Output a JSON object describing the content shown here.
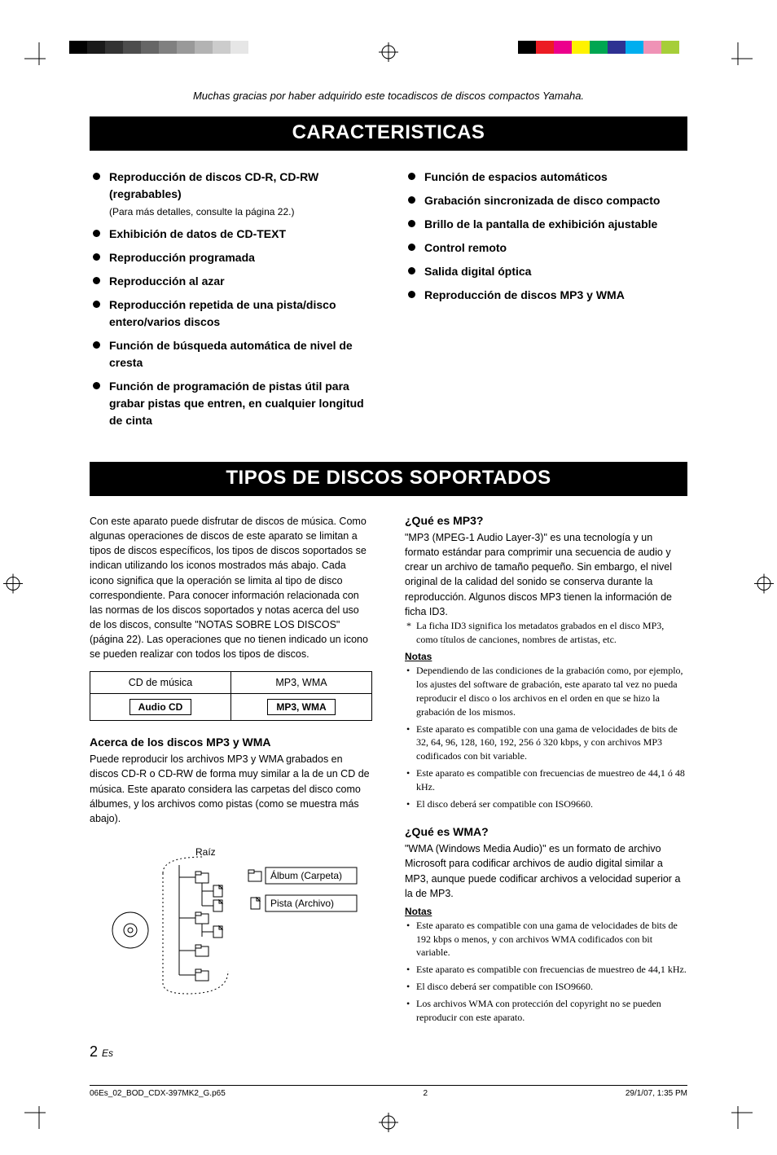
{
  "print_marks": {
    "grayscale_bar": [
      "#000000",
      "#1a1a1a",
      "#333333",
      "#4d4d4d",
      "#666666",
      "#808080",
      "#999999",
      "#b3b3b3",
      "#cccccc",
      "#e6e6e6"
    ],
    "color_bar": [
      "#000000",
      "#ec1c24",
      "#ec008c",
      "#fff200",
      "#00a651",
      "#2e3192",
      "#00aeef",
      "#ef92b6",
      "#a6ce39"
    ]
  },
  "thanks_text": "Muchas gracias por haber adquirido este tocadiscos de discos compactos Yamaha.",
  "section1_title": "CARACTERISTICAS",
  "features_left": [
    {
      "text": "Reproducción de discos CD-R, CD-RW (regrabables)",
      "sub": "(Para más detalles, consulte la página 22.)"
    },
    {
      "text": "Exhibición de datos de CD-TEXT"
    },
    {
      "text": "Reproducción programada"
    },
    {
      "text": "Reproducción al azar"
    },
    {
      "text": "Reproducción repetida de una pista/disco entero/varios discos"
    },
    {
      "text": "Función de búsqueda automática de nivel de cresta"
    },
    {
      "text": "Función de programación de pistas útil para grabar pistas que entren, en cualquier longitud de cinta"
    }
  ],
  "features_right": [
    {
      "text": "Función de espacios automáticos"
    },
    {
      "text": "Grabación sincronizada de disco compacto"
    },
    {
      "text": "Brillo de la pantalla de exhibición ajustable"
    },
    {
      "text": "Control remoto"
    },
    {
      "text": "Salida digital óptica"
    },
    {
      "text": "Reproducción de discos MP3 y WMA"
    }
  ],
  "section2_title": "TIPOS DE DISCOS SOPORTADOS",
  "intro_paragraph": "Con este aparato puede disfrutar de discos de música. Como algunas operaciones de discos de este aparato se limitan a tipos de discos específicos, los tipos de discos soportados se indican utilizando los iconos mostrados más abajo. Cada icono significa que la operación se limita al tipo de disco correspondiente. Para conocer información relacionada con las normas de los discos soportados y notas acerca del uso de los discos, consulte \"NOTAS SOBRE LOS DISCOS\" (página 22). Las operaciones que no tienen indicado un icono se pueden realizar con todos los tipos de discos.",
  "table": {
    "row1": [
      "CD de música",
      "MP3, WMA"
    ],
    "row2_badges": [
      "Audio CD",
      "MP3, WMA"
    ]
  },
  "mp3wma_heading": "Acerca de los discos MP3 y WMA",
  "mp3wma_body": "Puede reproducir los archivos MP3 y WMA grabados en discos CD-R o CD-RW de forma muy similar a la de un CD de música. Este aparato considera las carpetas del disco como álbumes, y los archivos como pistas (como se muestra más abajo).",
  "tree": {
    "root": "Raíz",
    "album": "Álbum (Carpeta)",
    "track": "Pista (Archivo)"
  },
  "mp3_heading": "¿Qué es MP3?",
  "mp3_body": "\"MP3 (MPEG-1 Audio Layer-3)\" es una tecnología y un formato estándar para comprimir una secuencia de audio y crear un archivo de tamaño pequeño. Sin embargo, el nivel original de la calidad del sonido se conserva durante la reproducción. Algunos discos MP3 tienen la información de ficha ID3.",
  "mp3_star": "La ficha ID3 significa los metadatos grabados en el disco MP3, como títulos de canciones, nombres de artistas, etc.",
  "notas_label": "Notas",
  "mp3_notes": [
    "Dependiendo de las condiciones de la grabación como, por ejemplo, los ajustes del software de grabación, este aparato tal vez no pueda reproducir el disco o los archivos en el orden en que se hizo la grabación de los mismos.",
    "Este aparato es compatible con una gama de velocidades de bits de 32, 64, 96, 128, 160, 192, 256 ó 320 kbps, y con archivos MP3 codificados con bit variable.",
    "Este aparato es compatible con frecuencias de muestreo de 44,1 ó 48 kHz.",
    "El disco deberá ser compatible con ISO9660."
  ],
  "wma_heading": "¿Qué es WMA?",
  "wma_body": "\"WMA (Windows Media Audio)\" es un formato de archivo Microsoft para codificar archivos de audio digital similar a MP3, aunque puede codificar archivos a velocidad superior a la de MP3.",
  "wma_notes": [
    "Este aparato es compatible con una gama de velocidades de bits de 192 kbps o menos, y con archivos WMA codificados con bit variable.",
    "Este aparato es compatible con frecuencias de muestreo de 44,1 kHz.",
    "El disco deberá ser compatible con ISO9660.",
    "Los archivos WMA con protección del copyright no se pueden reproducir con este aparato."
  ],
  "page_number": "2",
  "page_lang": "Es",
  "footer": {
    "file": "06Es_02_BOD_CDX-397MK2_G.p65",
    "page": "2",
    "datetime": "29/1/07, 1:35 PM"
  }
}
